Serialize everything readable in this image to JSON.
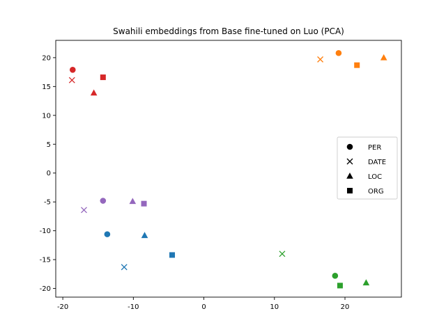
{
  "chart_data": {
    "type": "scatter",
    "title": "Swahili embeddings from Base fine-tuned on Luo (PCA)",
    "xlabel": "",
    "ylabel": "",
    "xlim": [
      -21,
      28
    ],
    "ylim": [
      -21.5,
      23
    ],
    "xticks": [
      -20,
      -10,
      0,
      10,
      20
    ],
    "yticks": [
      -20,
      -15,
      -10,
      -5,
      0,
      5,
      10,
      15,
      20
    ],
    "grid": false,
    "legend": {
      "placement": "center-right",
      "entries": [
        {
          "label": "PER",
          "marker": "circle"
        },
        {
          "label": "DATE",
          "marker": "x"
        },
        {
          "label": "LOC",
          "marker": "triangle"
        },
        {
          "label": "ORG",
          "marker": "square"
        }
      ]
    },
    "series": [
      {
        "color": "#1f77b4",
        "points": [
          {
            "marker": "circle",
            "x": -13.7,
            "y": -10.6
          },
          {
            "marker": "x",
            "x": -11.3,
            "y": -16.3
          },
          {
            "marker": "triangle",
            "x": -8.4,
            "y": -10.8
          },
          {
            "marker": "square",
            "x": -4.5,
            "y": -14.2
          }
        ]
      },
      {
        "color": "#ff7f0e",
        "points": [
          {
            "marker": "circle",
            "x": 19.1,
            "y": 20.8
          },
          {
            "marker": "x",
            "x": 16.5,
            "y": 19.7
          },
          {
            "marker": "triangle",
            "x": 25.5,
            "y": 20.0
          },
          {
            "marker": "square",
            "x": 21.7,
            "y": 18.7
          }
        ]
      },
      {
        "color": "#2ca02c",
        "points": [
          {
            "marker": "circle",
            "x": 18.6,
            "y": -17.8
          },
          {
            "marker": "x",
            "x": 11.1,
            "y": -14.0
          },
          {
            "marker": "triangle",
            "x": 23.0,
            "y": -19.0
          },
          {
            "marker": "square",
            "x": 19.3,
            "y": -19.5
          }
        ]
      },
      {
        "color": "#d62728",
        "points": [
          {
            "marker": "circle",
            "x": -18.6,
            "y": 17.9
          },
          {
            "marker": "x",
            "x": -18.7,
            "y": 16.1
          },
          {
            "marker": "triangle",
            "x": -15.6,
            "y": 13.9
          },
          {
            "marker": "square",
            "x": -14.3,
            "y": 16.6
          }
        ]
      },
      {
        "color": "#9467bd",
        "points": [
          {
            "marker": "circle",
            "x": -14.3,
            "y": -4.8
          },
          {
            "marker": "x",
            "x": -17.0,
            "y": -6.4
          },
          {
            "marker": "triangle",
            "x": -10.1,
            "y": -4.9
          },
          {
            "marker": "square",
            "x": -8.5,
            "y": -5.3
          }
        ]
      }
    ]
  }
}
